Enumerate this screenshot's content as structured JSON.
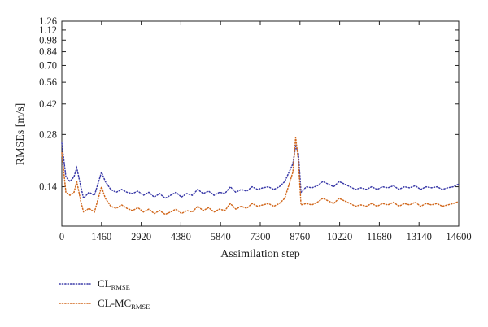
{
  "chart_data": {
    "type": "line",
    "xlabel": "Assimilation step",
    "ylabel": "RMSEs [m/s]",
    "x_ticks": [
      0,
      1460,
      2920,
      4380,
      5840,
      7300,
      8760,
      10220,
      11680,
      13140,
      14600
    ],
    "x_tick_labels": [
      "0",
      "1460",
      "2920",
      "4380",
      "5840",
      "7300",
      "8760",
      "10220",
      "11680",
      "13140",
      "14600"
    ],
    "y_ticks": [
      0.14,
      0.28,
      0.42,
      0.56,
      0.7,
      0.84,
      0.98,
      1.12,
      1.26
    ],
    "y_tick_labels": [
      "0.14",
      "0.28",
      "0.42",
      "0.56",
      "0.70",
      "0.84",
      "0.98",
      "1.12",
      "1.26"
    ],
    "y_scale": "log",
    "xlim": [
      0,
      14600
    ],
    "ylim": [
      0.083,
      1.26
    ],
    "grid": false,
    "legend_position": "bottom-left",
    "series": [
      {
        "name": "CL",
        "name_subscript": "RMSE",
        "color": "#3a3aa8",
        "line_style": "dotted",
        "points": [
          [
            0,
            0.25
          ],
          [
            150,
            0.16
          ],
          [
            300,
            0.15
          ],
          [
            450,
            0.16
          ],
          [
            550,
            0.18
          ],
          [
            700,
            0.14
          ],
          [
            800,
            0.12
          ],
          [
            1000,
            0.13
          ],
          [
            1200,
            0.125
          ],
          [
            1460,
            0.17
          ],
          [
            1600,
            0.15
          ],
          [
            1800,
            0.135
          ],
          [
            2000,
            0.13
          ],
          [
            2200,
            0.135
          ],
          [
            2400,
            0.13
          ],
          [
            2600,
            0.128
          ],
          [
            2800,
            0.132
          ],
          [
            3000,
            0.125
          ],
          [
            3200,
            0.13
          ],
          [
            3400,
            0.122
          ],
          [
            3600,
            0.128
          ],
          [
            3800,
            0.12
          ],
          [
            4000,
            0.125
          ],
          [
            4200,
            0.13
          ],
          [
            4400,
            0.122
          ],
          [
            4600,
            0.128
          ],
          [
            4800,
            0.125
          ],
          [
            5000,
            0.135
          ],
          [
            5200,
            0.128
          ],
          [
            5400,
            0.132
          ],
          [
            5600,
            0.125
          ],
          [
            5800,
            0.13
          ],
          [
            6000,
            0.128
          ],
          [
            6200,
            0.14
          ],
          [
            6400,
            0.13
          ],
          [
            6600,
            0.135
          ],
          [
            6800,
            0.132
          ],
          [
            7000,
            0.14
          ],
          [
            7200,
            0.135
          ],
          [
            7400,
            0.138
          ],
          [
            7600,
            0.14
          ],
          [
            7800,
            0.135
          ],
          [
            8000,
            0.14
          ],
          [
            8200,
            0.15
          ],
          [
            8500,
            0.19
          ],
          [
            8600,
            0.24
          ],
          [
            8700,
            0.22
          ],
          [
            8800,
            0.13
          ],
          [
            9000,
            0.14
          ],
          [
            9200,
            0.138
          ],
          [
            9400,
            0.142
          ],
          [
            9600,
            0.15
          ],
          [
            9800,
            0.145
          ],
          [
            10000,
            0.14
          ],
          [
            10200,
            0.15
          ],
          [
            10400,
            0.145
          ],
          [
            10600,
            0.14
          ],
          [
            10800,
            0.135
          ],
          [
            11000,
            0.138
          ],
          [
            11200,
            0.135
          ],
          [
            11400,
            0.14
          ],
          [
            11600,
            0.135
          ],
          [
            11800,
            0.14
          ],
          [
            12000,
            0.138
          ],
          [
            12200,
            0.142
          ],
          [
            12400,
            0.135
          ],
          [
            12600,
            0.14
          ],
          [
            12800,
            0.138
          ],
          [
            13000,
            0.142
          ],
          [
            13200,
            0.135
          ],
          [
            13400,
            0.14
          ],
          [
            13600,
            0.138
          ],
          [
            13800,
            0.14
          ],
          [
            14000,
            0.135
          ],
          [
            14200,
            0.138
          ],
          [
            14400,
            0.14
          ],
          [
            14600,
            0.145
          ]
        ]
      },
      {
        "name": "CL-MC",
        "name_subscript": "RMSE",
        "color": "#d2691e",
        "line_style": "dotted",
        "points": [
          [
            0,
            0.22
          ],
          [
            150,
            0.13
          ],
          [
            300,
            0.125
          ],
          [
            450,
            0.13
          ],
          [
            550,
            0.15
          ],
          [
            700,
            0.115
          ],
          [
            800,
            0.1
          ],
          [
            1000,
            0.105
          ],
          [
            1200,
            0.1
          ],
          [
            1460,
            0.14
          ],
          [
            1600,
            0.12
          ],
          [
            1800,
            0.108
          ],
          [
            2000,
            0.105
          ],
          [
            2200,
            0.11
          ],
          [
            2400,
            0.105
          ],
          [
            2600,
            0.102
          ],
          [
            2800,
            0.106
          ],
          [
            3000,
            0.1
          ],
          [
            3200,
            0.104
          ],
          [
            3400,
            0.098
          ],
          [
            3600,
            0.102
          ],
          [
            3800,
            0.097
          ],
          [
            4000,
            0.1
          ],
          [
            4200,
            0.104
          ],
          [
            4400,
            0.098
          ],
          [
            4600,
            0.102
          ],
          [
            4800,
            0.1
          ],
          [
            5000,
            0.108
          ],
          [
            5200,
            0.102
          ],
          [
            5400,
            0.106
          ],
          [
            5600,
            0.1
          ],
          [
            5800,
            0.104
          ],
          [
            6000,
            0.102
          ],
          [
            6200,
            0.112
          ],
          [
            6400,
            0.104
          ],
          [
            6600,
            0.108
          ],
          [
            6800,
            0.105
          ],
          [
            7000,
            0.112
          ],
          [
            7200,
            0.108
          ],
          [
            7400,
            0.11
          ],
          [
            7600,
            0.112
          ],
          [
            7800,
            0.108
          ],
          [
            8000,
            0.112
          ],
          [
            8200,
            0.12
          ],
          [
            8500,
            0.17
          ],
          [
            8600,
            0.27
          ],
          [
            8700,
            0.2
          ],
          [
            8800,
            0.11
          ],
          [
            9000,
            0.112
          ],
          [
            9200,
            0.11
          ],
          [
            9400,
            0.114
          ],
          [
            9600,
            0.12
          ],
          [
            9800,
            0.116
          ],
          [
            10000,
            0.112
          ],
          [
            10200,
            0.12
          ],
          [
            10400,
            0.116
          ],
          [
            10600,
            0.112
          ],
          [
            10800,
            0.108
          ],
          [
            11000,
            0.11
          ],
          [
            11200,
            0.108
          ],
          [
            11400,
            0.112
          ],
          [
            11600,
            0.108
          ],
          [
            11800,
            0.112
          ],
          [
            12000,
            0.11
          ],
          [
            12200,
            0.114
          ],
          [
            12400,
            0.108
          ],
          [
            12600,
            0.112
          ],
          [
            12800,
            0.11
          ],
          [
            13000,
            0.114
          ],
          [
            13200,
            0.108
          ],
          [
            13400,
            0.112
          ],
          [
            13600,
            0.11
          ],
          [
            13800,
            0.112
          ],
          [
            14000,
            0.108
          ],
          [
            14200,
            0.11
          ],
          [
            14400,
            0.112
          ],
          [
            14600,
            0.115
          ]
        ]
      }
    ]
  }
}
